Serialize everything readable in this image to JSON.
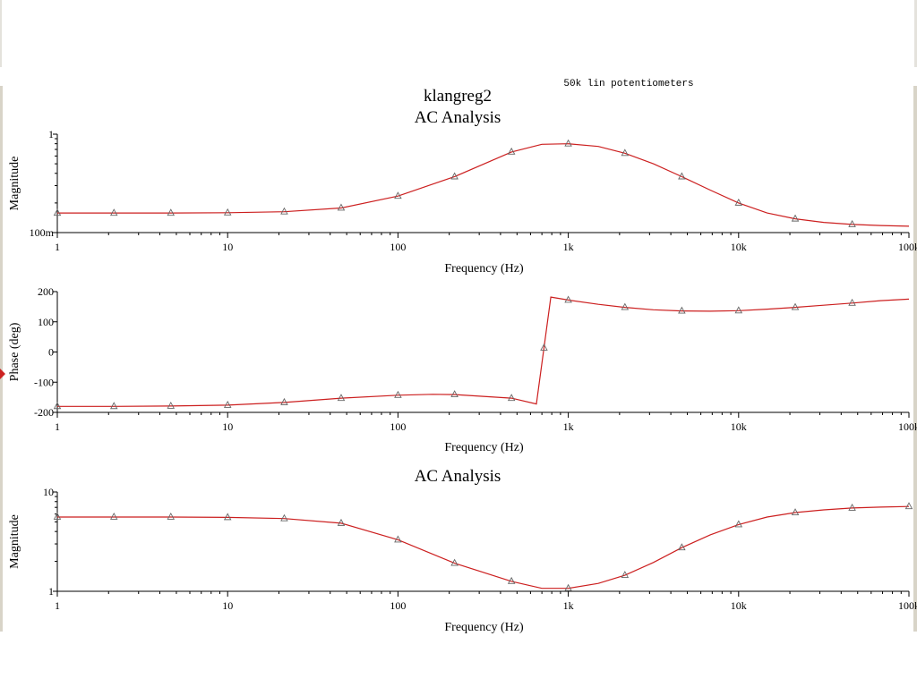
{
  "app": {
    "header": {
      "title": "klangreg2",
      "note": "50k lin potentiometers"
    }
  },
  "colors": {
    "trace": "#cc1f1f",
    "axis": "#000000",
    "marker": "#666666"
  },
  "chart_data": [
    {
      "type": "line",
      "title": "AC Analysis",
      "xlabel": "Frequency (Hz)",
      "ylabel": "Magnitude",
      "xscale": "log",
      "yscale": "log",
      "xlim": [
        1,
        100000
      ],
      "ylim": [
        0.1,
        1
      ],
      "x_ticks": [
        {
          "v": 1,
          "label": "1"
        },
        {
          "v": 10,
          "label": "10"
        },
        {
          "v": 100,
          "label": "100"
        },
        {
          "v": 1000,
          "label": "1k"
        },
        {
          "v": 10000,
          "label": "10k"
        },
        {
          "v": 100000,
          "label": "100k"
        }
      ],
      "y_ticks": [
        {
          "v": 1,
          "label": "1"
        },
        {
          "v": 0.1,
          "label": "100m"
        }
      ],
      "series": [
        {
          "x": [
            1,
            2.15,
            4.64,
            10,
            21.5,
            46.4,
            100,
            215,
            464,
            700,
            1000,
            1500,
            2150,
            3160,
            4640,
            6810,
            10000,
            14700,
            21500,
            31600,
            46400,
            68100,
            100000
          ],
          "values": [
            0.158,
            0.158,
            0.158,
            0.159,
            0.163,
            0.178,
            0.235,
            0.37,
            0.66,
            0.79,
            0.8,
            0.75,
            0.64,
            0.5,
            0.37,
            0.27,
            0.2,
            0.158,
            0.138,
            0.127,
            0.121,
            0.118,
            0.116
          ],
          "markers": [
            1,
            2.15,
            4.64,
            10,
            21.5,
            46.4,
            100,
            215,
            464,
            1000,
            2150,
            4640,
            10000,
            21500,
            46400
          ]
        }
      ]
    },
    {
      "type": "line",
      "title": "",
      "xlabel": "Frequency (Hz)",
      "ylabel": "Phase (deg)",
      "xscale": "log",
      "yscale": "linear",
      "xlim": [
        1,
        100000
      ],
      "ylim": [
        -200,
        200
      ],
      "x_ticks": [
        {
          "v": 1,
          "label": "1"
        },
        {
          "v": 10,
          "label": "10"
        },
        {
          "v": 100,
          "label": "100"
        },
        {
          "v": 1000,
          "label": "1k"
        },
        {
          "v": 10000,
          "label": "10k"
        },
        {
          "v": 100000,
          "label": "100k"
        }
      ],
      "y_ticks": [
        {
          "v": 200,
          "label": "200"
        },
        {
          "v": 100,
          "label": "100"
        },
        {
          "v": 0,
          "label": "0"
        },
        {
          "v": -100,
          "label": "-100"
        },
        {
          "v": -200,
          "label": "-200"
        }
      ],
      "series": [
        {
          "x": [
            1,
            2.15,
            4.64,
            10,
            21.5,
            46.4,
            100,
            160,
            215,
            464,
            650,
            790,
            1000,
            1500,
            2150,
            3160,
            4640,
            6810,
            10000,
            14700,
            21500,
            31600,
            46400,
            68100,
            100000
          ],
          "values": [
            -180,
            -180,
            -179,
            -176,
            -167,
            -153,
            -143,
            -140,
            -141,
            -153,
            -172,
            182,
            172,
            158,
            148,
            140,
            136,
            135,
            137,
            142,
            148,
            155,
            162,
            170,
            175
          ],
          "markers": [
            1,
            2.15,
            4.64,
            10,
            21.5,
            46.4,
            100,
            215,
            464,
            720,
            1000,
            2150,
            4640,
            10000,
            21500,
            46400
          ]
        }
      ]
    },
    {
      "type": "line",
      "title": "AC Analysis",
      "xlabel": "Frequency (Hz)",
      "ylabel": "Magnitude",
      "xscale": "log",
      "yscale": "log",
      "xlim": [
        1,
        100000
      ],
      "ylim": [
        1,
        10
      ],
      "x_ticks": [
        {
          "v": 1,
          "label": "1"
        },
        {
          "v": 10,
          "label": "10"
        },
        {
          "v": 100,
          "label": "100"
        },
        {
          "v": 1000,
          "label": "1k"
        },
        {
          "v": 10000,
          "label": "10k"
        },
        {
          "v": 100000,
          "label": "100k"
        }
      ],
      "y_ticks": [
        {
          "v": 10,
          "label": "10"
        },
        {
          "v": 1,
          "label": "1"
        }
      ],
      "series": [
        {
          "x": [
            1,
            2.15,
            4.64,
            10,
            21.5,
            46.4,
            100,
            215,
            464,
            700,
            1000,
            1500,
            2150,
            3160,
            4640,
            6810,
            10000,
            14700,
            21500,
            31600,
            46400,
            68100,
            100000
          ],
          "values": [
            5.6,
            5.6,
            5.6,
            5.55,
            5.4,
            4.85,
            3.3,
            1.92,
            1.26,
            1.07,
            1.07,
            1.2,
            1.45,
            1.95,
            2.75,
            3.7,
            4.7,
            5.6,
            6.2,
            6.6,
            6.9,
            7.05,
            7.15
          ],
          "markers": [
            1,
            2.15,
            4.64,
            10,
            21.5,
            46.4,
            100,
            215,
            464,
            1000,
            2150,
            4640,
            10000,
            21500,
            46400,
            100000
          ]
        }
      ]
    }
  ]
}
